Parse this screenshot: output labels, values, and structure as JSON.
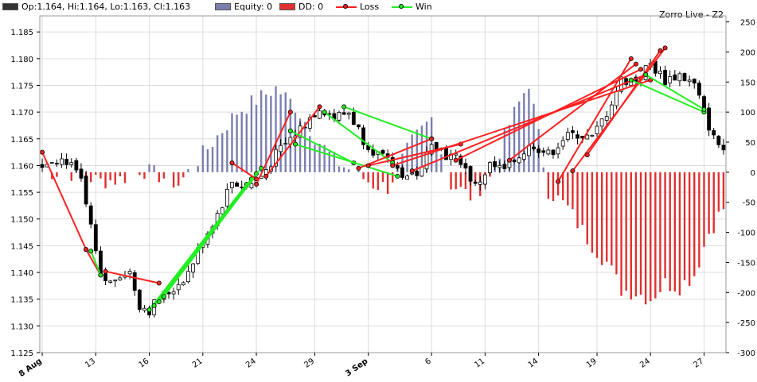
{
  "legend": {
    "ohlc": "Op:1.164, Hi:1.164, Lo:1.163, Cl:1.163",
    "equity": "Equity: 0",
    "dd": "DD: 0",
    "loss": "Loss",
    "win": "Win"
  },
  "chart_title": "Zorro Live - Z2",
  "colors": {
    "equity": "#7b7fb0",
    "drawdown": "#e03030",
    "loss": "#ff2020",
    "win": "#22ee22",
    "candle": "#000000",
    "grid": "#dddddd"
  },
  "chart_data": {
    "type": "candlestick",
    "price_axis": {
      "ylim": [
        1.125,
        1.188
      ],
      "ticks": [
        "1.125",
        "1.130",
        "1.135",
        "1.140",
        "1.145",
        "1.150",
        "1.155",
        "1.160",
        "1.165",
        "1.170",
        "1.175",
        "1.180",
        "1.185"
      ]
    },
    "equity_axis": {
      "ylim": [
        -300,
        260
      ],
      "ticks": [
        "-300",
        "-250",
        "-200",
        "-150",
        "-100",
        "-50",
        "0",
        "50",
        "100",
        "150",
        "200",
        "250"
      ]
    },
    "x_axis": {
      "labels": [
        {
          "label": "8 Aug",
          "bar": 0,
          "bold": true
        },
        {
          "label": "13",
          "bar": 11
        },
        {
          "label": "16",
          "bar": 22
        },
        {
          "label": "21",
          "bar": 33
        },
        {
          "label": "24",
          "bar": 44
        },
        {
          "label": "29",
          "bar": 56
        },
        {
          "label": "3 Sep",
          "bar": 67,
          "bold": true
        },
        {
          "label": "6",
          "bar": 80
        },
        {
          "label": "11",
          "bar": 91
        },
        {
          "label": "14",
          "bar": 102
        },
        {
          "label": "19",
          "bar": 114
        },
        {
          "label": "24",
          "bar": 125
        },
        {
          "label": "27",
          "bar": 136
        }
      ]
    },
    "bars": 141,
    "price_path": [
      [
        0,
        1.16
      ],
      [
        2,
        1.1615
      ],
      [
        5,
        1.161
      ],
      [
        8,
        1.157
      ],
      [
        10,
        1.148
      ],
      [
        12,
        1.139
      ],
      [
        14,
        1.138
      ],
      [
        16,
        1.14
      ],
      [
        18,
        1.14
      ],
      [
        20,
        1.134
      ],
      [
        22,
        1.133
      ],
      [
        24,
        1.135
      ],
      [
        27,
        1.137
      ],
      [
        30,
        1.14
      ],
      [
        33,
        1.146
      ],
      [
        36,
        1.151
      ],
      [
        39,
        1.157
      ],
      [
        42,
        1.156
      ],
      [
        45,
        1.158
      ],
      [
        48,
        1.162
      ],
      [
        51,
        1.165
      ],
      [
        54,
        1.168
      ],
      [
        57,
        1.171
      ],
      [
        60,
        1.169
      ],
      [
        63,
        1.17
      ],
      [
        66,
        1.165
      ],
      [
        69,
        1.162
      ],
      [
        72,
        1.16
      ],
      [
        75,
        1.158
      ],
      [
        78,
        1.159
      ],
      [
        80,
        1.165
      ],
      [
        83,
        1.162
      ],
      [
        86,
        1.161
      ],
      [
        89,
        1.156
      ],
      [
        92,
        1.16
      ],
      [
        95,
        1.159
      ],
      [
        98,
        1.162
      ],
      [
        101,
        1.164
      ],
      [
        104,
        1.162
      ],
      [
        107,
        1.165
      ],
      [
        110,
        1.166
      ],
      [
        113,
        1.165
      ],
      [
        116,
        1.17
      ],
      [
        119,
        1.176
      ],
      [
        122,
        1.176
      ],
      [
        125,
        1.179
      ],
      [
        128,
        1.176
      ],
      [
        131,
        1.177
      ],
      [
        134,
        1.175
      ],
      [
        136,
        1.17
      ],
      [
        138,
        1.165
      ],
      [
        140,
        1.163
      ]
    ],
    "equity_path": [
      [
        0,
        0
      ],
      [
        5,
        0
      ],
      [
        8,
        -5
      ],
      [
        12,
        -15
      ],
      [
        16,
        -12
      ],
      [
        20,
        5
      ],
      [
        24,
        -5
      ],
      [
        28,
        -20
      ],
      [
        31,
        10
      ],
      [
        34,
        40
      ],
      [
        37,
        70
      ],
      [
        40,
        100
      ],
      [
        44,
        120
      ],
      [
        48,
        140
      ],
      [
        52,
        110
      ],
      [
        56,
        60
      ],
      [
        60,
        20
      ],
      [
        64,
        0
      ],
      [
        68,
        -20
      ],
      [
        71,
        -25
      ],
      [
        74,
        20
      ],
      [
        76,
        50
      ],
      [
        80,
        90
      ],
      [
        84,
        -20
      ],
      [
        88,
        -40
      ],
      [
        92,
        -10
      ],
      [
        96,
        80
      ],
      [
        100,
        150
      ],
      [
        104,
        -30
      ],
      [
        108,
        -60
      ],
      [
        112,
        -110
      ],
      [
        116,
        -150
      ],
      [
        119,
        -195
      ],
      [
        122,
        -200
      ],
      [
        125,
        -210
      ],
      [
        128,
        -185
      ],
      [
        131,
        -190
      ],
      [
        134,
        -170
      ],
      [
        137,
        -100
      ],
      [
        140,
        -60
      ]
    ],
    "trades": [
      {
        "type": "loss",
        "entry": [
          0,
          1.1625
        ],
        "exit": [
          9,
          1.1443
        ]
      },
      {
        "type": "loss",
        "entry": [
          9,
          1.1443
        ],
        "exit": [
          12,
          1.1395
        ]
      },
      {
        "type": "loss",
        "entry": [
          13,
          1.1402
        ],
        "exit": [
          24,
          1.138
        ]
      },
      {
        "type": "win",
        "entry": [
          10,
          1.144
        ],
        "exit": [
          12,
          1.1395
        ]
      },
      {
        "type": "win",
        "entry": [
          22,
          1.133
        ],
        "exit": [
          42,
          1.1565
        ]
      },
      {
        "type": "win",
        "entry": [
          23,
          1.1338
        ],
        "exit": [
          43,
          1.1575
        ]
      },
      {
        "type": "win",
        "entry": [
          24,
          1.1345
        ],
        "exit": [
          44,
          1.1585
        ]
      },
      {
        "type": "win",
        "entry": [
          25,
          1.1355
        ],
        "exit": [
          45,
          1.1595
        ]
      },
      {
        "type": "loss",
        "entry": [
          39,
          1.1605
        ],
        "exit": [
          44,
          1.1575
        ]
      },
      {
        "type": "loss",
        "entry": [
          44,
          1.1565
        ],
        "exit": [
          51,
          1.17
        ]
      },
      {
        "type": "loss",
        "entry": [
          46,
          1.158
        ],
        "exit": [
          57,
          1.171
        ]
      },
      {
        "type": "win",
        "entry": [
          51,
          1.1665
        ],
        "exit": [
          64,
          1.1605
        ]
      },
      {
        "type": "win",
        "entry": [
          52,
          1.164
        ],
        "exit": [
          73,
          1.158
        ]
      },
      {
        "type": "win",
        "entry": [
          58,
          1.17
        ],
        "exit": [
          72,
          1.1605
        ]
      },
      {
        "type": "win",
        "entry": [
          62,
          1.171
        ],
        "exit": [
          80,
          1.165
        ]
      },
      {
        "type": "loss",
        "entry": [
          65,
          1.1595
        ],
        "exit": [
          80,
          1.165
        ]
      },
      {
        "type": "loss",
        "entry": [
          67,
          1.16
        ],
        "exit": [
          86,
          1.164
        ]
      },
      {
        "type": "loss",
        "entry": [
          72,
          1.16
        ],
        "exit": [
          125,
          1.176
        ]
      },
      {
        "type": "loss",
        "entry": [
          76,
          1.159
        ],
        "exit": [
          124,
          1.177
        ]
      },
      {
        "type": "loss",
        "entry": [
          85,
          1.161
        ],
        "exit": [
          123,
          1.178
        ]
      },
      {
        "type": "loss",
        "entry": [
          96,
          1.161
        ],
        "exit": [
          122,
          1.179
        ]
      },
      {
        "type": "loss",
        "entry": [
          106,
          1.157
        ],
        "exit": [
          121,
          1.18
        ]
      },
      {
        "type": "loss",
        "entry": [
          109,
          1.159
        ],
        "exit": [
          128,
          1.182
        ]
      },
      {
        "type": "loss",
        "entry": [
          112,
          1.162
        ],
        "exit": [
          127,
          1.1815
        ]
      },
      {
        "type": "win",
        "entry": [
          121,
          1.176
        ],
        "exit": [
          136,
          1.17
        ]
      },
      {
        "type": "win",
        "entry": [
          124,
          1.177
        ],
        "exit": [
          136,
          1.1705
        ]
      }
    ]
  }
}
